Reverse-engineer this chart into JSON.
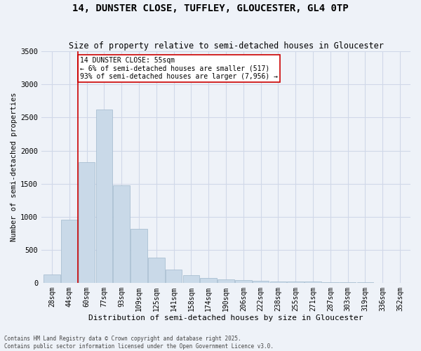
{
  "title": "14, DUNSTER CLOSE, TUFFLEY, GLOUCESTER, GL4 0TP",
  "subtitle": "Size of property relative to semi-detached houses in Gloucester",
  "xlabel": "Distribution of semi-detached houses by size in Gloucester",
  "ylabel": "Number of semi-detached properties",
  "categories": [
    "28sqm",
    "44sqm",
    "60sqm",
    "77sqm",
    "93sqm",
    "109sqm",
    "125sqm",
    "141sqm",
    "158sqm",
    "174sqm",
    "190sqm",
    "206sqm",
    "222sqm",
    "238sqm",
    "255sqm",
    "271sqm",
    "287sqm",
    "303sqm",
    "319sqm",
    "336sqm",
    "352sqm"
  ],
  "values": [
    130,
    960,
    1830,
    2620,
    1480,
    820,
    380,
    200,
    120,
    80,
    55,
    40,
    30,
    25,
    20,
    20,
    15,
    10,
    8,
    5,
    3
  ],
  "bar_color": "#c9d9e8",
  "bar_edge_color": "#a0b8cc",
  "grid_color": "#d0d8e8",
  "background_color": "#eef2f8",
  "vline_color": "#cc0000",
  "annotation_text": "14 DUNSTER CLOSE: 55sqm\n← 6% of semi-detached houses are smaller (517)\n93% of semi-detached houses are larger (7,956) →",
  "annotation_box_color": "#ffffff",
  "annotation_box_edge": "#cc0000",
  "footnote": "Contains HM Land Registry data © Crown copyright and database right 2025.\nContains public sector information licensed under the Open Government Licence v3.0.",
  "ylim": [
    0,
    3500
  ],
  "yticks": [
    0,
    500,
    1000,
    1500,
    2000,
    2500,
    3000,
    3500
  ]
}
